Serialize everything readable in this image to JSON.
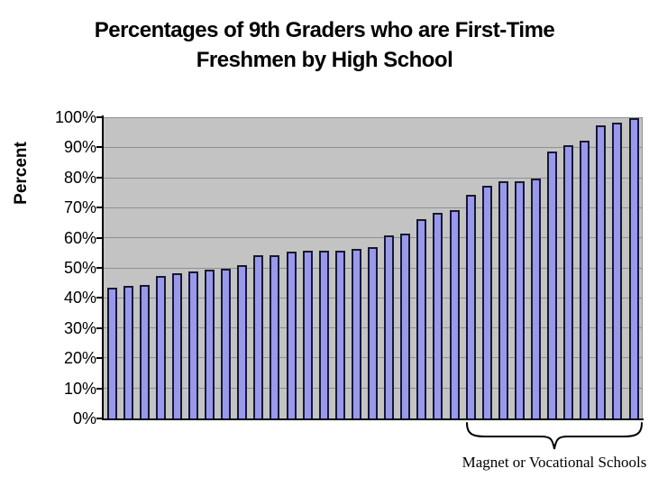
{
  "title_lines": [
    "Percentages of 9th Graders who are First-Time",
    "Freshmen by High School"
  ],
  "chart_data": {
    "type": "bar",
    "title": "Percentages of 9th Graders who are First-Time Freshmen by High School",
    "ylabel": "Percent",
    "xlabel": "",
    "ylim": [
      0,
      100
    ],
    "ytick_labels": [
      "0%",
      "10%",
      "20%",
      "30%",
      "40%",
      "50%",
      "60%",
      "70%",
      "80%",
      "90%",
      "100%"
    ],
    "grid": true,
    "legend": false,
    "x_axis_labels_shown": false,
    "bar_count": 33,
    "values": [
      43.5,
      44,
      44.5,
      47.5,
      48.5,
      49,
      49.5,
      50,
      51,
      54.5,
      54.5,
      55.5,
      56,
      56,
      56,
      56.5,
      57,
      61,
      61.5,
      66.5,
      68.5,
      69.5,
      74.5,
      77.5,
      79,
      79,
      80,
      89,
      91,
      92.5,
      97.5,
      98.5,
      100
    ],
    "annotation": {
      "text": "Magnet or Vocational Schools",
      "applies_to": "last 11 bars"
    }
  },
  "colors": {
    "bar_fill": "#9999E8",
    "bar_border": "#16163C",
    "plot_background": "#C3C3C3",
    "gridline": "#909090",
    "axis": "#000000",
    "text": "#000000",
    "page_background": "#FFFFFF"
  }
}
